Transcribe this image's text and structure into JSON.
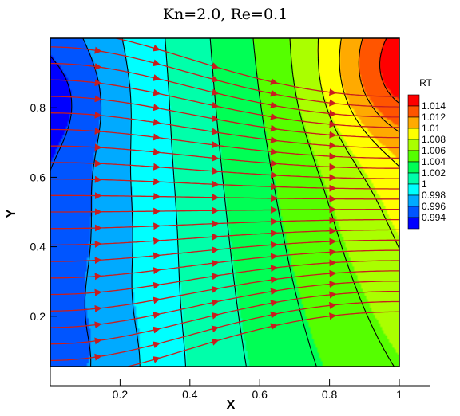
{
  "chart_data": {
    "type": "contour",
    "title": "Kn=2.0, Re=0.1",
    "xlabel": "X",
    "ylabel": "Y",
    "xlim": [
      0,
      1
    ],
    "ylim": [
      0,
      1
    ],
    "x_ticks": [
      "0.2",
      "0.4",
      "0.6",
      "0.8",
      "1"
    ],
    "y_ticks": [
      "0.2",
      "0.4",
      "0.6",
      "0.8"
    ],
    "legend": {
      "title": "RT",
      "position": "right",
      "levels": [
        "1.014",
        "1.012",
        "1.01",
        "1.008",
        "1.006",
        "1.004",
        "1.002",
        "1",
        "0.998",
        "0.996",
        "0.994"
      ],
      "colors": [
        "#ff0000",
        "#ff5500",
        "#ffaa00",
        "#ffff00",
        "#aaff00",
        "#55ff00",
        "#00ff55",
        "#00ffaa",
        "#00ffff",
        "#00aaff",
        "#0055ff",
        "#0000ff"
      ]
    },
    "field_min": 0.994,
    "field_max": 1.015,
    "streamline_color": "#c81e1e",
    "contour_line_color": "#000000"
  }
}
